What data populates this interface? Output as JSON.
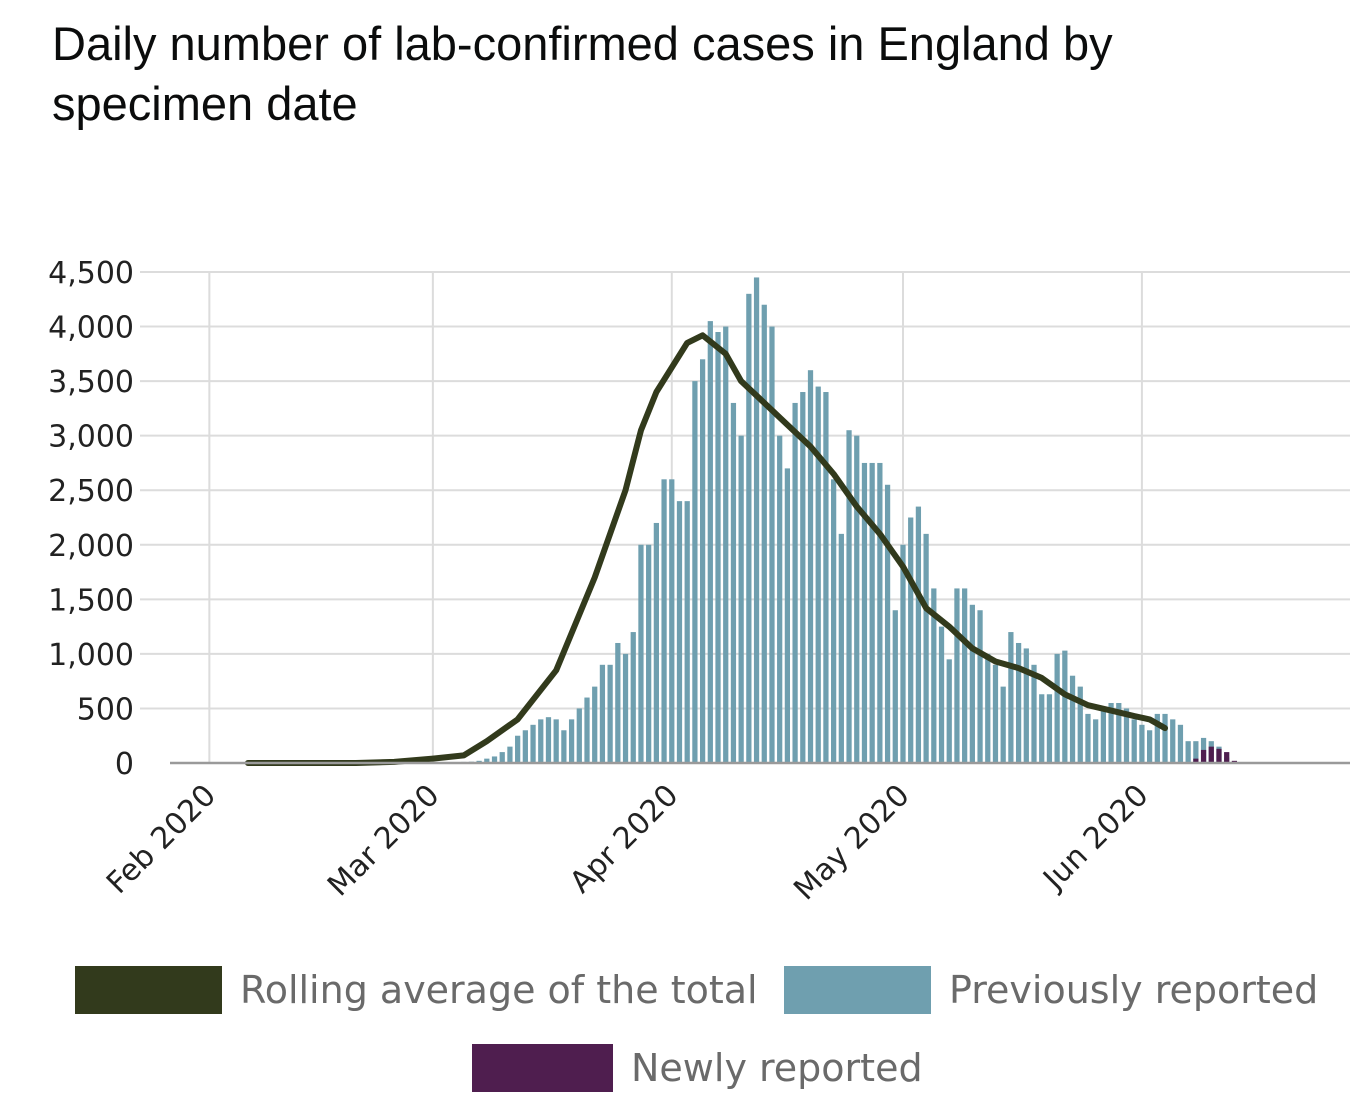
{
  "chart_data": {
    "type": "bar",
    "title": "Daily number of lab-confirmed cases in England by specimen date",
    "xlabel": "",
    "ylabel": "",
    "ylim": [
      0,
      4500
    ],
    "yticks": [
      "0",
      "500",
      "1,000",
      "1,500",
      "2,000",
      "2,500",
      "3,000",
      "3,500",
      "4,000",
      "4,500"
    ],
    "xticks": [
      {
        "label": "Feb 2020",
        "date": "2020-02-01"
      },
      {
        "label": "Mar 2020",
        "date": "2020-03-01"
      },
      {
        "label": "Apr 2020",
        "date": "2020-04-01"
      },
      {
        "label": "May 2020",
        "date": "2020-05-01"
      },
      {
        "label": "Jun 2020",
        "date": "2020-06-01"
      }
    ],
    "x_range": [
      "2020-01-23",
      "2020-06-28"
    ],
    "grid": true,
    "legend_position": "bottom",
    "colors": {
      "previously": "#6f9faf",
      "newly": "#4f1e4f",
      "rolling": "#323a1c"
    },
    "series": [
      {
        "name": "Previously reported",
        "x_start": "2020-03-02",
        "values": [
          2,
          5,
          8,
          10,
          12,
          20,
          40,
          60,
          100,
          150,
          250,
          300,
          350,
          400,
          420,
          400,
          300,
          400,
          500,
          600,
          700,
          900,
          900,
          1100,
          1000,
          1200,
          2000,
          2000,
          2200,
          2600,
          2600,
          2400,
          2400,
          3500,
          3700,
          4050,
          3950,
          4000,
          3300,
          3000,
          4300,
          4450,
          4200,
          4000,
          3000,
          2700,
          3300,
          3400,
          3600,
          3450,
          3400,
          2600,
          2100,
          3050,
          3000,
          2750,
          2750,
          2750,
          2550,
          1400,
          2000,
          2250,
          2350,
          2100,
          1600,
          1250,
          950,
          1600,
          1600,
          1450,
          1400,
          1000,
          900,
          700,
          1200,
          1100,
          1050,
          900,
          630,
          630,
          1000,
          1030,
          800,
          700,
          450,
          400,
          500,
          550,
          550,
          500,
          400,
          350,
          300,
          450,
          450,
          400,
          350,
          200,
          200,
          230,
          200,
          150,
          50,
          10
        ]
      },
      {
        "name": "Newly reported",
        "x_start": "2020-06-08",
        "values": [
          40,
          120,
          150,
          130,
          100,
          20
        ]
      },
      {
        "name": "Rolling average of the total",
        "points": [
          [
            "2020-02-06",
            0
          ],
          [
            "2020-02-20",
            0
          ],
          [
            "2020-02-25",
            10
          ],
          [
            "2020-03-01",
            40
          ],
          [
            "2020-03-05",
            70
          ],
          [
            "2020-03-08",
            200
          ],
          [
            "2020-03-12",
            400
          ],
          [
            "2020-03-17",
            850
          ],
          [
            "2020-03-22",
            1700
          ],
          [
            "2020-03-26",
            2500
          ],
          [
            "2020-03-28",
            3050
          ],
          [
            "2020-03-30",
            3400
          ],
          [
            "2020-04-03",
            3850
          ],
          [
            "2020-04-05",
            3920
          ],
          [
            "2020-04-08",
            3750
          ],
          [
            "2020-04-10",
            3500
          ],
          [
            "2020-04-13",
            3300
          ],
          [
            "2020-04-16",
            3100
          ],
          [
            "2020-04-19",
            2900
          ],
          [
            "2020-04-22",
            2650
          ],
          [
            "2020-04-25",
            2350
          ],
          [
            "2020-04-28",
            2100
          ],
          [
            "2020-05-01",
            1800
          ],
          [
            "2020-05-04",
            1420
          ],
          [
            "2020-05-07",
            1250
          ],
          [
            "2020-05-10",
            1050
          ],
          [
            "2020-05-13",
            930
          ],
          [
            "2020-05-16",
            870
          ],
          [
            "2020-05-19",
            780
          ],
          [
            "2020-05-22",
            630
          ],
          [
            "2020-05-25",
            530
          ],
          [
            "2020-05-28",
            480
          ],
          [
            "2020-05-31",
            430
          ],
          [
            "2020-06-02",
            400
          ],
          [
            "2020-06-04",
            320
          ]
        ]
      }
    ]
  },
  "legend": {
    "rolling": "Rolling average of the total",
    "previously": "Previously reported",
    "newly": "Newly reported"
  }
}
